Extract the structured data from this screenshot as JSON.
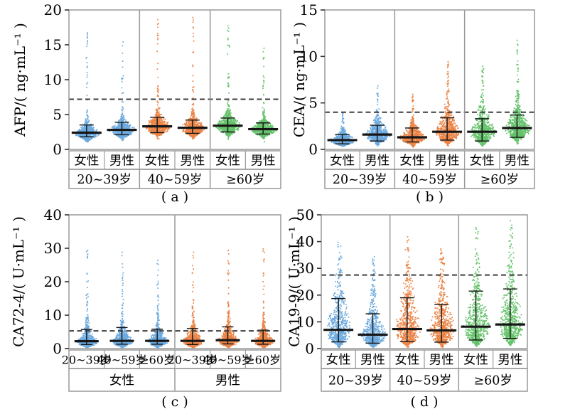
{
  "figure": {
    "background": "#ffffff",
    "border_color": "#999999",
    "stat_line_color": "#161616",
    "cutoff_line_color": "#3d3d3d"
  },
  "colors": {
    "age_20_39": "#4C96D7",
    "age_40_59": "#E5681C",
    "age_60_plus": "#42B449",
    "female_panel_c": "#4C96D7",
    "male_panel_c": "#E5681C"
  },
  "chart_data": [
    {
      "id": "a",
      "type": "scatter",
      "style": "jitter-violin-with-median-whiskers",
      "caption": "( a )",
      "ylabel": "AFP/( ng·mL⁻¹ )",
      "ylim": [
        0,
        20
      ],
      "yticks": [
        0,
        5,
        10,
        15,
        20
      ],
      "cutoff": 7.2,
      "sections": [
        {
          "label": "20~39岁",
          "color": "#4C96D7",
          "items": [
            {
              "label": "女性",
              "median": 2.4,
              "q_low": 1.8,
              "q_high": 3.5,
              "max": 16.8
            },
            {
              "label": "男性",
              "median": 2.8,
              "q_low": 2.1,
              "q_high": 3.9,
              "max": 15.5
            }
          ]
        },
        {
          "label": "40~59岁",
          "color": "#E5681C",
          "items": [
            {
              "label": "女性",
              "median": 3.3,
              "q_low": 2.4,
              "q_high": 4.6,
              "max": 18.7
            },
            {
              "label": "男性",
              "median": 3.1,
              "q_low": 2.3,
              "q_high": 4.2,
              "max": 19.0
            }
          ]
        },
        {
          "label": "≥60岁",
          "color": "#42B449",
          "items": [
            {
              "label": "女性",
              "median": 3.4,
              "q_low": 2.5,
              "q_high": 4.5,
              "max": 17.8
            },
            {
              "label": "男性",
              "median": 2.9,
              "q_low": 2.2,
              "q_high": 3.8,
              "max": 14.6
            }
          ]
        }
      ]
    },
    {
      "id": "b",
      "type": "scatter",
      "style": "jitter-violin-with-median-whiskers",
      "caption": "( b )",
      "ylabel": "CEA/( ng·mL⁻¹ )",
      "ylim": [
        0,
        15
      ],
      "yticks": [
        0,
        5,
        10,
        15
      ],
      "cutoff": 4.0,
      "sections": [
        {
          "label": "20~39岁",
          "color": "#4C96D7",
          "items": [
            {
              "label": "女性",
              "median": 1.0,
              "q_low": 0.6,
              "q_high": 1.6,
              "max": 4.0
            },
            {
              "label": "男性",
              "median": 1.6,
              "q_low": 0.9,
              "q_high": 2.6,
              "max": 6.9
            }
          ]
        },
        {
          "label": "40~59岁",
          "color": "#E5681C",
          "items": [
            {
              "label": "女性",
              "median": 1.3,
              "q_low": 0.8,
              "q_high": 2.3,
              "max": 6.0
            },
            {
              "label": "男性",
              "median": 1.9,
              "q_low": 1.0,
              "q_high": 3.4,
              "max": 9.5
            }
          ]
        },
        {
          "label": "≥60岁",
          "color": "#42B449",
          "items": [
            {
              "label": "女性",
              "median": 1.9,
              "q_low": 0.9,
              "q_high": 3.3,
              "max": 9.0
            },
            {
              "label": "男性",
              "median": 2.3,
              "q_low": 1.3,
              "q_high": 3.7,
              "max": 11.8
            }
          ]
        }
      ]
    },
    {
      "id": "c",
      "type": "scatter",
      "style": "jitter-violin-with-median-whiskers",
      "caption": "( c )",
      "ylabel": "CA72-4/( U·mL⁻¹ )",
      "ylim": [
        0,
        40
      ],
      "yticks": [
        0,
        10,
        20,
        30,
        40
      ],
      "cutoff": 5.3,
      "sections": [
        {
          "label": "女性",
          "color": "#4C96D7",
          "items": [
            {
              "label": "20~39岁",
              "median": 2.2,
              "q_low": 1.2,
              "q_high": 5.7,
              "max": 29.5
            },
            {
              "label": "40~59岁",
              "median": 2.3,
              "q_low": 1.3,
              "q_high": 6.3,
              "max": 29.0
            },
            {
              "label": "≥60岁",
              "median": 2.3,
              "q_low": 1.3,
              "q_high": 5.8,
              "max": 26.5
            }
          ]
        },
        {
          "label": "男性",
          "color": "#E5681C",
          "items": [
            {
              "label": "20~39岁",
              "median": 2.3,
              "q_low": 1.2,
              "q_high": 6.0,
              "max": 29.0
            },
            {
              "label": "40~59岁",
              "median": 2.5,
              "q_low": 1.4,
              "q_high": 6.5,
              "max": 29.5
            },
            {
              "label": "≥60岁",
              "median": 2.3,
              "q_low": 1.3,
              "q_high": 5.5,
              "max": 30.0
            }
          ]
        }
      ]
    },
    {
      "id": "d",
      "type": "scatter",
      "style": "jitter-violin-with-median-whiskers",
      "caption": "( d )",
      "ylabel": "CA19-9/( U·mL⁻¹ )",
      "ylim": [
        0,
        50
      ],
      "yticks": [
        0,
        10,
        20,
        30,
        40,
        50
      ],
      "cutoff": 27.5,
      "sections": [
        {
          "label": "20~39岁",
          "color": "#4C96D7",
          "items": [
            {
              "label": "女性",
              "median": 7.0,
              "q_low": 2.5,
              "q_high": 18.7,
              "max": 40.0
            },
            {
              "label": "男性",
              "median": 5.2,
              "q_low": 2.0,
              "q_high": 13.0,
              "max": 34.5
            }
          ]
        },
        {
          "label": "40~59岁",
          "color": "#E5681C",
          "items": [
            {
              "label": "女性",
              "median": 7.3,
              "q_low": 2.6,
              "q_high": 19.0,
              "max": 42.0
            },
            {
              "label": "男性",
              "median": 6.8,
              "q_low": 2.4,
              "q_high": 16.5,
              "max": 37.5
            }
          ]
        },
        {
          "label": "≥60岁",
          "color": "#42B449",
          "items": [
            {
              "label": "女性",
              "median": 8.2,
              "q_low": 3.2,
              "q_high": 21.5,
              "max": 45.5
            },
            {
              "label": "男性",
              "median": 9.0,
              "q_low": 3.8,
              "q_high": 22.3,
              "max": 48.0
            }
          ]
        }
      ]
    }
  ]
}
